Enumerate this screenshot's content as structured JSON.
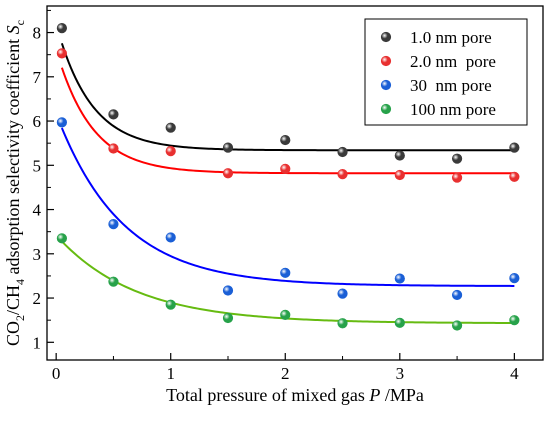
{
  "chart_data": {
    "type": "scatter",
    "xlabel": "Total pressure of mixed gas P /MPa",
    "ylabel": "CO2/CH4 adsorption selectivity coefficient Sc",
    "xlim": [
      -0.08,
      4.25
    ],
    "ylim": [
      0.6,
      8.6
    ],
    "x_ticks": [
      "0",
      "1",
      "2",
      "3",
      "4"
    ],
    "y_ticks": [
      "1",
      "2",
      "3",
      "4",
      "5",
      "6",
      "7",
      "8"
    ],
    "legend_position": "top-right",
    "grid": false,
    "series": [
      {
        "name": "1.0 nm pore",
        "color": "#000000",
        "marker_color": "#3a3a3a",
        "x": [
          0.05,
          0.5,
          1.0,
          1.5,
          2.0,
          2.5,
          3.0,
          3.5,
          4.0
        ],
        "y": [
          8.1,
          6.15,
          5.85,
          5.4,
          5.57,
          5.3,
          5.22,
          5.15,
          5.4
        ],
        "fit": {
          "y0": 5.34,
          "a": 2.85,
          "k": 3.3
        }
      },
      {
        "name": "2.0 nm  pore",
        "color": "#ff0000",
        "marker_color": "#e83030",
        "x": [
          0.05,
          0.5,
          1.0,
          1.5,
          2.0,
          2.5,
          3.0,
          3.5,
          4.0
        ],
        "y": [
          7.53,
          5.38,
          5.32,
          4.82,
          4.92,
          4.8,
          4.78,
          4.72,
          4.74
        ],
        "fit": {
          "y0": 4.82,
          "a": 2.8,
          "k": 3.2
        }
      },
      {
        "name": "30  nm pore",
        "color": "#0000ff",
        "marker_color": "#1a5fd6",
        "x": [
          0.05,
          0.5,
          1.0,
          1.5,
          2.0,
          2.5,
          3.0,
          3.5,
          4.0
        ],
        "y": [
          5.97,
          3.67,
          3.37,
          2.17,
          2.57,
          2.1,
          2.44,
          2.07,
          2.45
        ],
        "fit": {
          "y0": 2.27,
          "a": 3.9,
          "k": 1.75
        }
      },
      {
        "name": "100 nm pore",
        "color": "#66bb11",
        "marker_color": "#27a24a",
        "x": [
          0.05,
          0.5,
          1.0,
          1.5,
          2.0,
          2.5,
          3.0,
          3.5,
          4.0
        ],
        "y": [
          3.35,
          2.37,
          1.85,
          1.55,
          1.62,
          1.43,
          1.44,
          1.38,
          1.5
        ],
        "fit": {
          "y0": 1.43,
          "a": 1.99,
          "k": 1.45
        }
      }
    ]
  }
}
